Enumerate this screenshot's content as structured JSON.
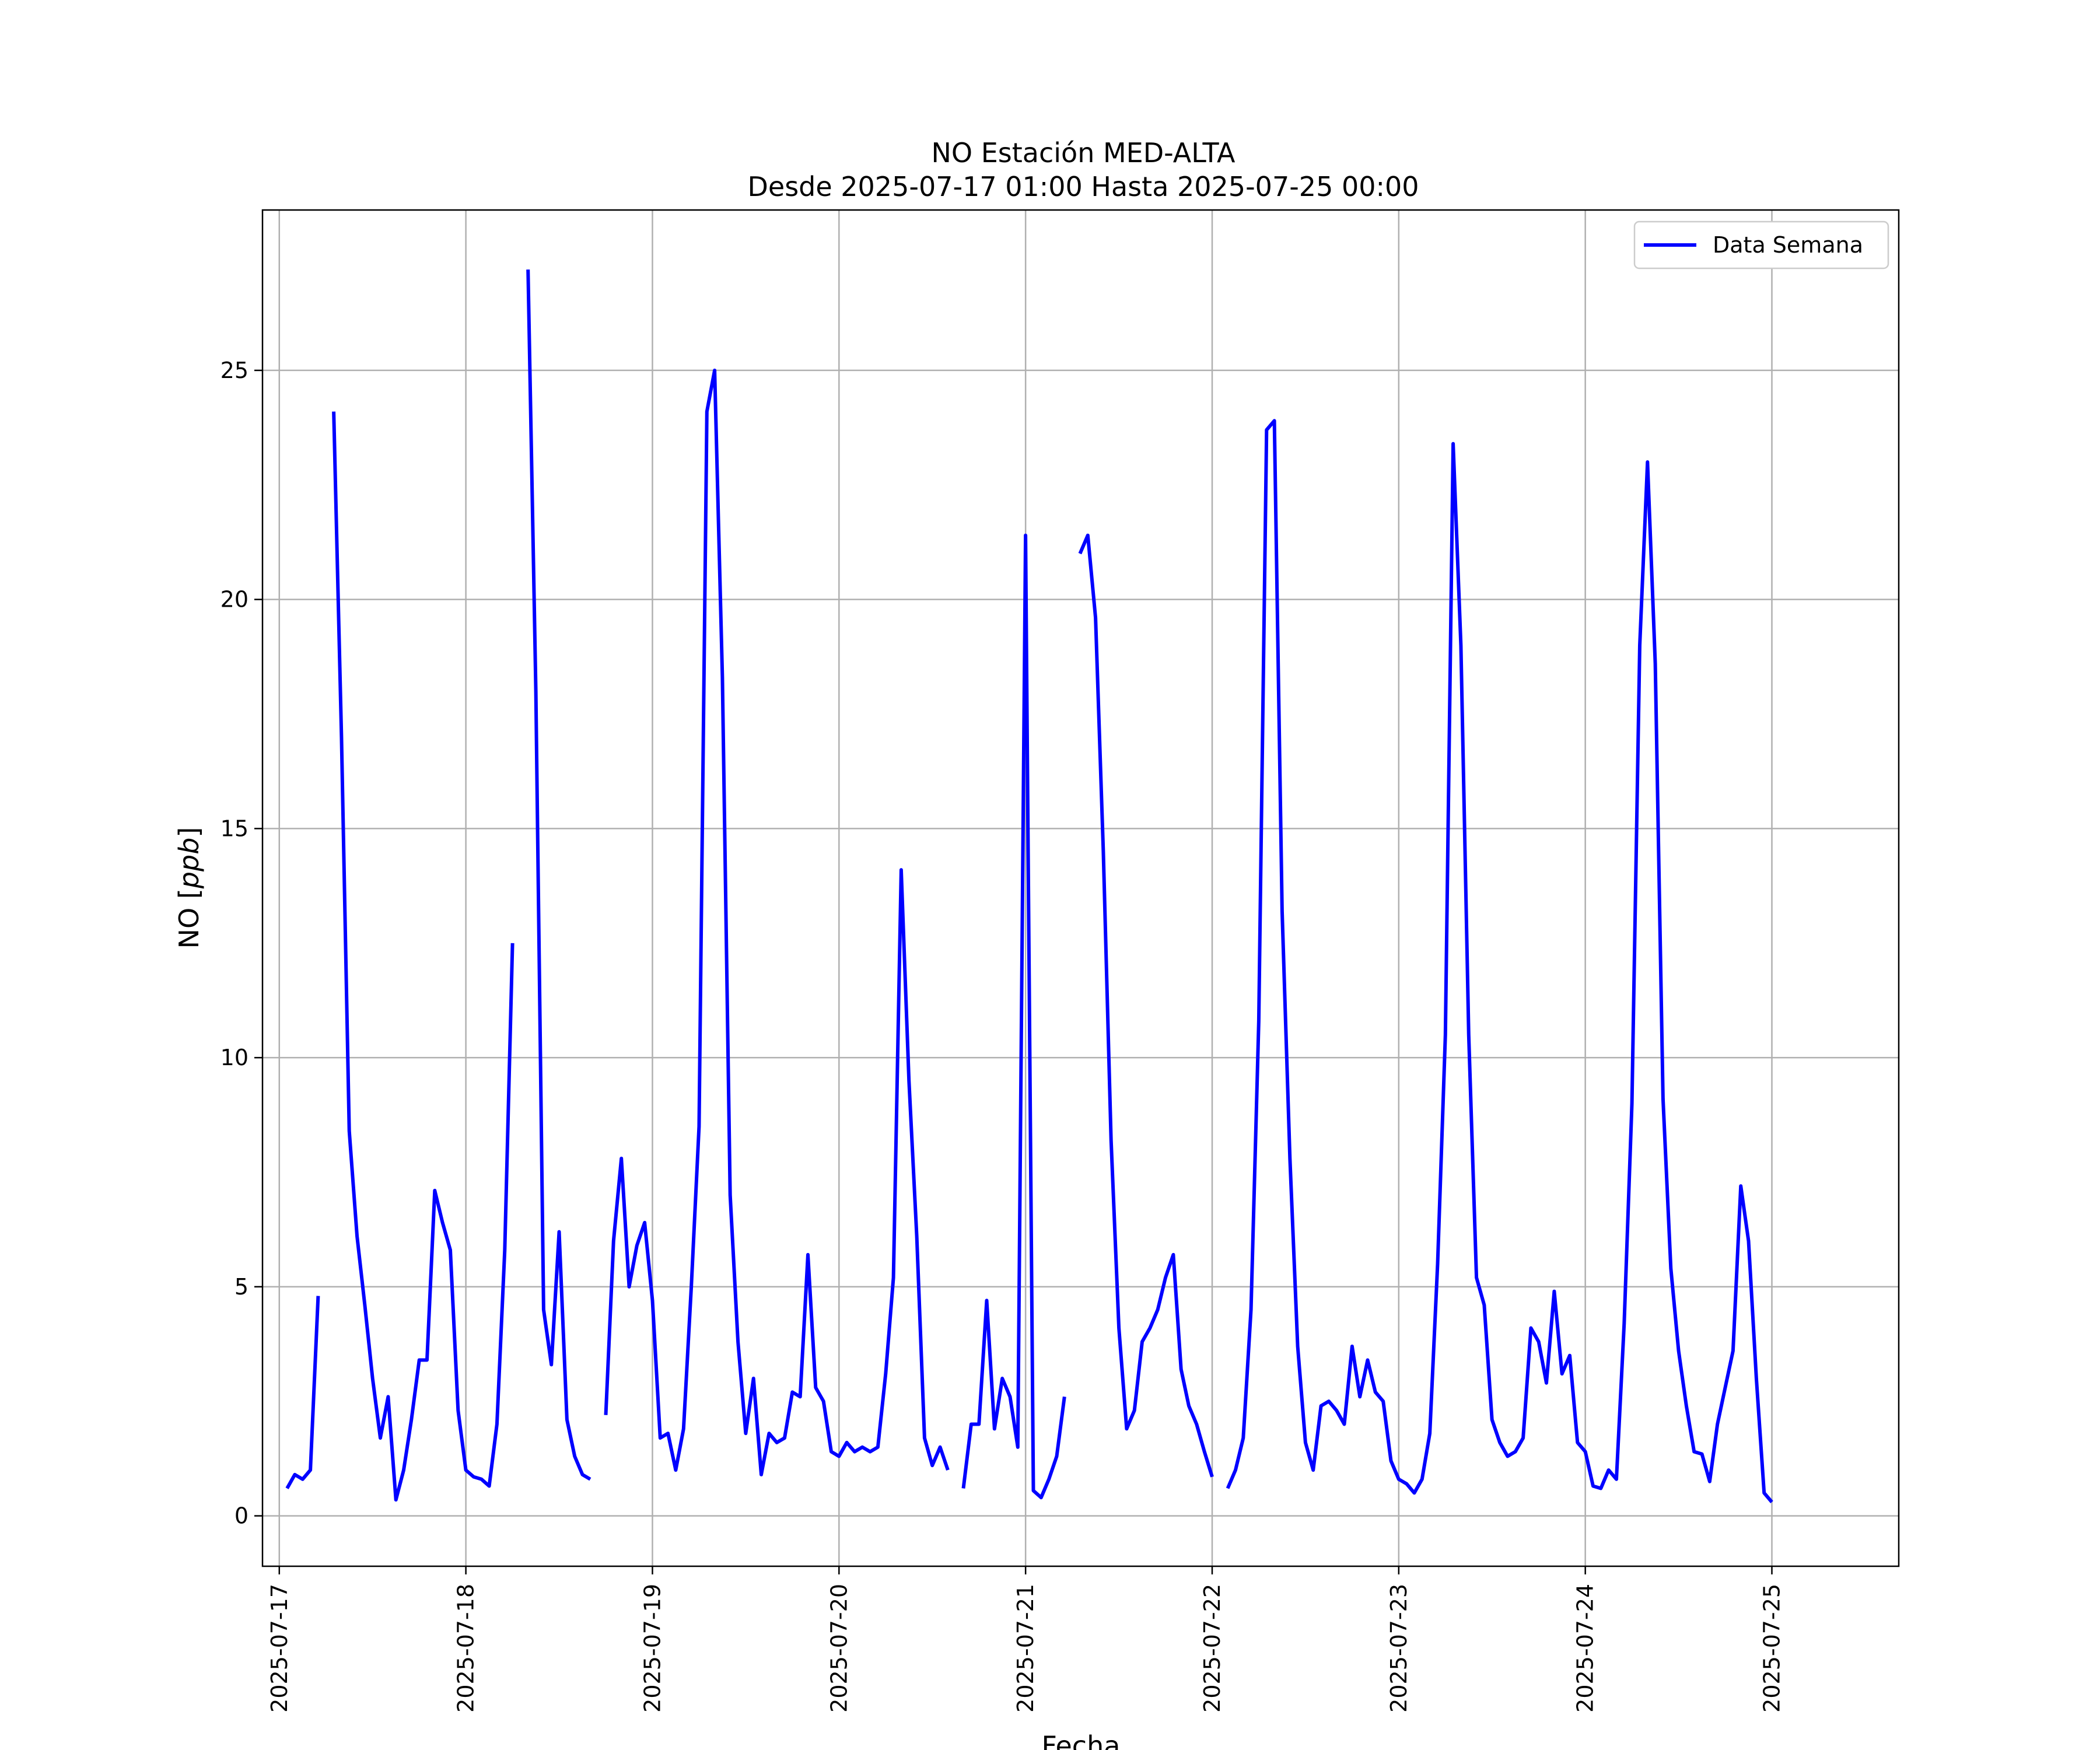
{
  "chart_data": {
    "type": "line",
    "title_line1": "NO Estación MED-ALTA",
    "title_line2": "Desde 2025-07-17 01:00 Hasta 2025-07-25 00:00",
    "xlabel": "Fecha",
    "ylabel_prefix": "NO [",
    "ylabel_unit": "ppb",
    "ylabel_suffix": "]",
    "x_start": "2025-07-17 00:00",
    "xlim_days": [
      -0.09,
      8.68
    ],
    "ylim": [
      -1.1,
      28.5
    ],
    "x_ticks": [
      "2025-07-17",
      "2025-07-18",
      "2025-07-19",
      "2025-07-20",
      "2025-07-21",
      "2025-07-22",
      "2025-07-23",
      "2025-07-24",
      "2025-07-25"
    ],
    "y_ticks": [
      0,
      5,
      10,
      15,
      20,
      25
    ],
    "grid": true,
    "legend_position": "upper right",
    "series": [
      {
        "name": "Data Semana",
        "color": "#0000ff",
        "segments": [
          [
            [
              "2025-07-17 01:00",
              0.6
            ],
            [
              "2025-07-17 02:00",
              0.9
            ],
            [
              "2025-07-17 03:00",
              0.8
            ],
            [
              "2025-07-17 04:00",
              1.0
            ],
            [
              "2025-07-17 05:00",
              4.8
            ]
          ],
          [
            [
              "2025-07-17 07:00",
              24.1
            ],
            [
              "2025-07-17 08:00",
              17.0
            ],
            [
              "2025-07-17 09:00",
              8.4
            ],
            [
              "2025-07-17 10:00",
              6.1
            ],
            [
              "2025-07-17 11:00",
              4.6
            ],
            [
              "2025-07-17 12:00",
              3.0
            ],
            [
              "2025-07-17 13:00",
              1.7
            ],
            [
              "2025-07-17 14:00",
              2.6
            ],
            [
              "2025-07-17 15:00",
              0.35
            ],
            [
              "2025-07-17 16:00",
              1.0
            ],
            [
              "2025-07-17 17:00",
              2.1
            ],
            [
              "2025-07-17 18:00",
              3.4
            ],
            [
              "2025-07-17 19:00",
              3.4
            ],
            [
              "2025-07-17 20:00",
              7.1
            ],
            [
              "2025-07-17 21:00",
              6.4
            ],
            [
              "2025-07-17 22:00",
              5.8
            ],
            [
              "2025-07-17 23:00",
              2.3
            ],
            [
              "2025-07-18 00:00",
              1.0
            ],
            [
              "2025-07-18 01:00",
              0.85
            ],
            [
              "2025-07-18 02:00",
              0.8
            ],
            [
              "2025-07-18 03:00",
              0.65
            ],
            [
              "2025-07-18 04:00",
              2.0
            ],
            [
              "2025-07-18 05:00",
              5.8
            ],
            [
              "2025-07-18 06:00",
              12.5
            ]
          ],
          [
            [
              "2025-07-18 08:00",
              27.2
            ],
            [
              "2025-07-18 09:00",
              18.0
            ],
            [
              "2025-07-18 10:00",
              4.5
            ],
            [
              "2025-07-18 11:00",
              3.3
            ],
            [
              "2025-07-18 12:00",
              6.2
            ],
            [
              "2025-07-18 13:00",
              2.1
            ],
            [
              "2025-07-18 14:00",
              1.3
            ],
            [
              "2025-07-18 15:00",
              0.9
            ],
            [
              "2025-07-18 16:00",
              0.8
            ]
          ],
          [
            [
              "2025-07-18 18:00",
              2.2
            ],
            [
              "2025-07-18 19:00",
              6.0
            ],
            [
              "2025-07-18 20:00",
              7.8
            ],
            [
              "2025-07-18 21:00",
              5.0
            ],
            [
              "2025-07-18 22:00",
              5.9
            ],
            [
              "2025-07-18 23:00",
              6.4
            ],
            [
              "2025-07-19 00:00",
              4.7
            ],
            [
              "2025-07-19 01:00",
              1.7
            ],
            [
              "2025-07-19 02:00",
              1.8
            ],
            [
              "2025-07-19 03:00",
              1.0
            ],
            [
              "2025-07-19 04:00",
              1.9
            ],
            [
              "2025-07-19 05:00",
              5.0
            ],
            [
              "2025-07-19 06:00",
              8.5
            ],
            [
              "2025-07-19 07:00",
              24.1
            ],
            [
              "2025-07-19 08:00",
              25.0
            ],
            [
              "2025-07-19 09:00",
              18.3
            ],
            [
              "2025-07-19 10:00",
              7.0
            ],
            [
              "2025-07-19 11:00",
              3.8
            ],
            [
              "2025-07-19 12:00",
              1.8
            ],
            [
              "2025-07-19 13:00",
              3.0
            ],
            [
              "2025-07-19 14:00",
              0.9
            ],
            [
              "2025-07-19 15:00",
              1.8
            ],
            [
              "2025-07-19 16:00",
              1.6
            ],
            [
              "2025-07-19 17:00",
              1.7
            ],
            [
              "2025-07-19 18:00",
              2.7
            ],
            [
              "2025-07-19 19:00",
              2.6
            ],
            [
              "2025-07-19 20:00",
              5.7
            ],
            [
              "2025-07-19 21:00",
              2.8
            ],
            [
              "2025-07-19 22:00",
              2.5
            ],
            [
              "2025-07-19 23:00",
              1.4
            ],
            [
              "2025-07-20 00:00",
              1.3
            ],
            [
              "2025-07-20 01:00",
              1.6
            ],
            [
              "2025-07-20 02:00",
              1.4
            ],
            [
              "2025-07-20 03:00",
              1.5
            ],
            [
              "2025-07-20 04:00",
              1.4
            ],
            [
              "2025-07-20 05:00",
              1.5
            ],
            [
              "2025-07-20 06:00",
              3.1
            ],
            [
              "2025-07-20 07:00",
              5.2
            ],
            [
              "2025-07-20 08:00",
              14.1
            ],
            [
              "2025-07-20 09:00",
              9.5
            ],
            [
              "2025-07-20 10:00",
              6.1
            ],
            [
              "2025-07-20 11:00",
              1.7
            ],
            [
              "2025-07-20 12:00",
              1.1
            ],
            [
              "2025-07-20 13:00",
              1.5
            ],
            [
              "2025-07-20 14:00",
              1.0
            ]
          ],
          [
            [
              "2025-07-20 16:00",
              0.6
            ],
            [
              "2025-07-20 17:00",
              2.0
            ],
            [
              "2025-07-20 18:00",
              2.0
            ],
            [
              "2025-07-20 19:00",
              4.7
            ],
            [
              "2025-07-20 20:00",
              1.9
            ],
            [
              "2025-07-20 21:00",
              3.0
            ],
            [
              "2025-07-20 22:00",
              2.6
            ],
            [
              "2025-07-20 23:00",
              1.5
            ],
            [
              "2025-07-21 00:00",
              21.4
            ],
            [
              "2025-07-21 01:00",
              0.55
            ],
            [
              "2025-07-21 02:00",
              0.4
            ],
            [
              "2025-07-21 03:00",
              0.8
            ],
            [
              "2025-07-21 04:00",
              1.3
            ],
            [
              "2025-07-21 05:00",
              2.6
            ]
          ],
          [
            [
              "2025-07-21 07:00",
              21.0
            ],
            [
              "2025-07-21 08:00",
              21.4
            ],
            [
              "2025-07-21 09:00",
              19.6
            ],
            [
              "2025-07-21 10:00",
              14.5
            ],
            [
              "2025-07-21 11:00",
              8.2
            ],
            [
              "2025-07-21 12:00",
              4.1
            ],
            [
              "2025-07-21 13:00",
              1.9
            ],
            [
              "2025-07-21 14:00",
              2.3
            ],
            [
              "2025-07-21 15:00",
              3.8
            ],
            [
              "2025-07-21 16:00",
              4.1
            ],
            [
              "2025-07-21 17:00",
              4.5
            ],
            [
              "2025-07-21 18:00",
              5.2
            ],
            [
              "2025-07-21 19:00",
              5.7
            ],
            [
              "2025-07-21 20:00",
              3.2
            ],
            [
              "2025-07-21 21:00",
              2.4
            ],
            [
              "2025-07-21 22:00",
              2.0
            ],
            [
              "2025-07-21 23:00",
              1.4
            ],
            [
              "2025-07-22 00:00",
              0.85
            ]
          ],
          [
            [
              "2025-07-22 02:00",
              0.6
            ],
            [
              "2025-07-22 03:00",
              1.0
            ],
            [
              "2025-07-22 04:00",
              1.7
            ],
            [
              "2025-07-22 05:00",
              4.5
            ],
            [
              "2025-07-22 06:00",
              10.8
            ],
            [
              "2025-07-22 07:00",
              23.7
            ],
            [
              "2025-07-22 08:00",
              23.9
            ],
            [
              "2025-07-22 09:00",
              13.2
            ],
            [
              "2025-07-22 10:00",
              7.8
            ],
            [
              "2025-07-22 11:00",
              3.7
            ],
            [
              "2025-07-22 12:00",
              1.6
            ],
            [
              "2025-07-22 13:00",
              1.0
            ],
            [
              "2025-07-22 14:00",
              2.4
            ],
            [
              "2025-07-22 15:00",
              2.5
            ],
            [
              "2025-07-22 16:00",
              2.3
            ],
            [
              "2025-07-22 17:00",
              2.0
            ],
            [
              "2025-07-22 18:00",
              3.7
            ],
            [
              "2025-07-22 19:00",
              2.6
            ],
            [
              "2025-07-22 20:00",
              3.4
            ],
            [
              "2025-07-22 21:00",
              2.7
            ],
            [
              "2025-07-22 22:00",
              2.5
            ],
            [
              "2025-07-22 23:00",
              1.2
            ],
            [
              "2025-07-23 00:00",
              0.8
            ],
            [
              "2025-07-23 01:00",
              0.7
            ],
            [
              "2025-07-23 02:00",
              0.5
            ],
            [
              "2025-07-23 03:00",
              0.8
            ],
            [
              "2025-07-23 04:00",
              1.8
            ],
            [
              "2025-07-23 05:00",
              5.5
            ],
            [
              "2025-07-23 06:00",
              10.5
            ],
            [
              "2025-07-23 07:00",
              23.4
            ],
            [
              "2025-07-23 08:00",
              19.0
            ],
            [
              "2025-07-23 09:00",
              10.5
            ],
            [
              "2025-07-23 10:00",
              5.2
            ],
            [
              "2025-07-23 11:00",
              4.6
            ],
            [
              "2025-07-23 12:00",
              2.1
            ],
            [
              "2025-07-23 13:00",
              1.6
            ],
            [
              "2025-07-23 14:00",
              1.3
            ],
            [
              "2025-07-23 15:00",
              1.4
            ],
            [
              "2025-07-23 16:00",
              1.7
            ],
            [
              "2025-07-23 17:00",
              4.1
            ],
            [
              "2025-07-23 18:00",
              3.8
            ],
            [
              "2025-07-23 19:00",
              2.9
            ],
            [
              "2025-07-23 20:00",
              4.9
            ],
            [
              "2025-07-23 21:00",
              3.1
            ],
            [
              "2025-07-23 22:00",
              3.5
            ],
            [
              "2025-07-23 23:00",
              1.6
            ],
            [
              "2025-07-24 00:00",
              1.4
            ],
            [
              "2025-07-24 01:00",
              0.65
            ],
            [
              "2025-07-24 02:00",
              0.6
            ],
            [
              "2025-07-24 03:00",
              1.0
            ],
            [
              "2025-07-24 04:00",
              0.8
            ],
            [
              "2025-07-24 05:00",
              4.2
            ],
            [
              "2025-07-24 06:00",
              9.0
            ],
            [
              "2025-07-24 07:00",
              19.0
            ],
            [
              "2025-07-24 08:00",
              23.0
            ],
            [
              "2025-07-24 09:00",
              18.6
            ],
            [
              "2025-07-24 10:00",
              9.1
            ],
            [
              "2025-07-24 11:00",
              5.4
            ],
            [
              "2025-07-24 12:00",
              3.6
            ],
            [
              "2025-07-24 13:00",
              2.4
            ],
            [
              "2025-07-24 14:00",
              1.4
            ],
            [
              "2025-07-24 15:00",
              1.35
            ],
            [
              "2025-07-24 16:00",
              0.75
            ],
            [
              "2025-07-24 17:00",
              2.0
            ],
            [
              "2025-07-24 18:00",
              2.8
            ],
            [
              "2025-07-24 19:00",
              3.6
            ],
            [
              "2025-07-24 20:00",
              7.2
            ],
            [
              "2025-07-24 21:00",
              6.0
            ],
            [
              "2025-07-24 22:00",
              3.0
            ],
            [
              "2025-07-24 23:00",
              0.5
            ],
            [
              "2025-07-25 00:00",
              0.3
            ]
          ]
        ]
      }
    ]
  }
}
